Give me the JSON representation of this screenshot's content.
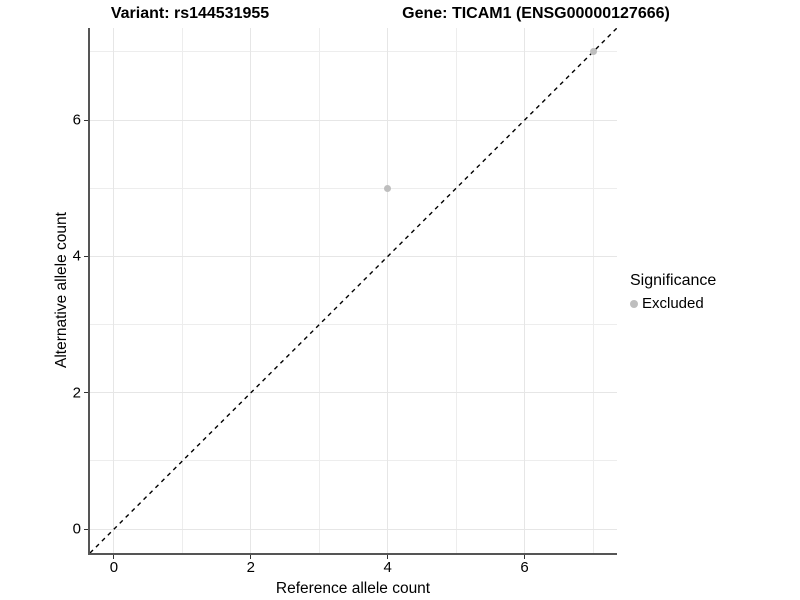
{
  "titles": {
    "variant": "Variant: rs144531955",
    "gene": "Gene: TICAM1 (ENSG00000127666)"
  },
  "legend": {
    "title": "Significance",
    "items": [
      {
        "label": "Excluded",
        "color": "#bebebe",
        "marker": "circle-icon"
      }
    ]
  },
  "chart_data": {
    "type": "scatter",
    "title": "Variant: rs144531955  |  Gene: TICAM1 (ENSG00000127666)",
    "xlabel": "Reference allele count",
    "ylabel": "Alternative allele count",
    "xlim": [
      -0.35,
      7.35
    ],
    "ylim": [
      -0.35,
      7.35
    ],
    "x_major_ticks": [
      0,
      2,
      4,
      6
    ],
    "y_major_ticks": [
      0,
      2,
      4,
      6
    ],
    "x_minor_gridlines": [
      1,
      3,
      5,
      7
    ],
    "y_minor_gridlines": [
      1,
      3,
      5,
      7
    ],
    "grid": true,
    "legend_position": "right",
    "series": [
      {
        "name": "Excluded",
        "color": "#bebebe",
        "points": [
          {
            "x": 4,
            "y": 5
          },
          {
            "x": 7,
            "y": 7
          }
        ]
      }
    ],
    "reference_line": {
      "type": "identity",
      "from": [
        -0.35,
        -0.35
      ],
      "to": [
        7.35,
        7.35
      ],
      "style": "dashed",
      "color": "#000000"
    }
  },
  "colors": {
    "background": "#ffffff",
    "grid_major": "#e6e6e6",
    "grid_minor": "#ededed",
    "axis_line": "#555555",
    "tick_mark": "#333333",
    "text": "#000000"
  }
}
